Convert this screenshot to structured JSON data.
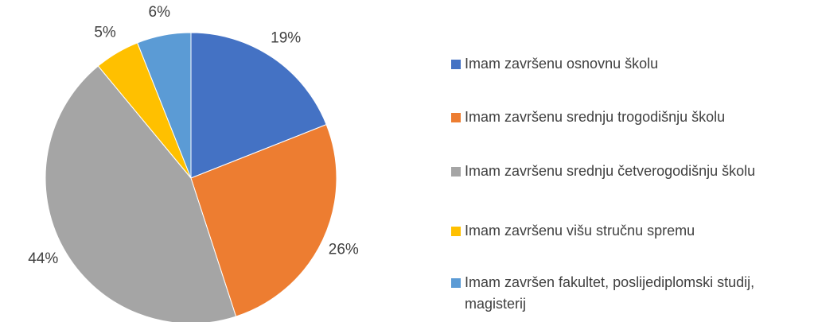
{
  "chart_data": {
    "type": "pie",
    "categories": [
      "Imam završenu osnovnu školu",
      "Imam završenu srednju trogodišnju školu",
      "Imam završenu srednju četverogodišnju školu",
      "Imam završenu višu stručnu spremu",
      "Imam završen fakultet, poslijediplomski studij, magisterij"
    ],
    "values": [
      19,
      26,
      44,
      5,
      6
    ],
    "value_labels": [
      "19%",
      "26%",
      "44%",
      "5%",
      "6%"
    ],
    "colors": [
      "#4472c4",
      "#ed7d31",
      "#a5a5a5",
      "#ffc000",
      "#5b9bd5"
    ],
    "legend": "right"
  }
}
